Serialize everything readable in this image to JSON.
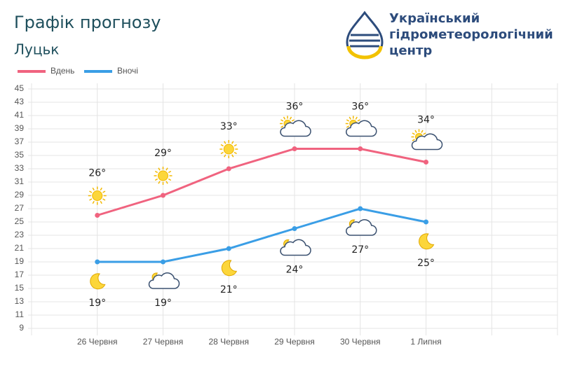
{
  "chart_data": {
    "type": "line",
    "title": "Графік прогнозу",
    "subtitle": "Луцьк",
    "logo_text": [
      "Український",
      "гідрометеорологічний",
      "центр"
    ],
    "categories": [
      "26 Червня",
      "27 Червня",
      "28 Червня",
      "29 Червня",
      "30 Червня",
      "1 Липня"
    ],
    "series": [
      {
        "name": "Вдень",
        "color": "#f0637f",
        "values": [
          26,
          29,
          33,
          36,
          36,
          34
        ],
        "value_labels": [
          "26°",
          "29°",
          "33°",
          "36°",
          "36°",
          "34°"
        ]
      },
      {
        "name": "Вночі",
        "color": "#3a9ee6",
        "values": [
          19,
          19,
          21,
          24,
          27,
          25
        ],
        "value_labels": [
          "19°",
          "19°",
          "21°",
          "24°",
          "27°",
          "25°"
        ]
      }
    ],
    "ylim": [
      9,
      45
    ],
    "yticks": [
      9,
      11,
      13,
      15,
      17,
      19,
      21,
      23,
      25,
      27,
      29,
      31,
      33,
      35,
      37,
      39,
      41,
      43,
      45
    ],
    "grid": true
  }
}
